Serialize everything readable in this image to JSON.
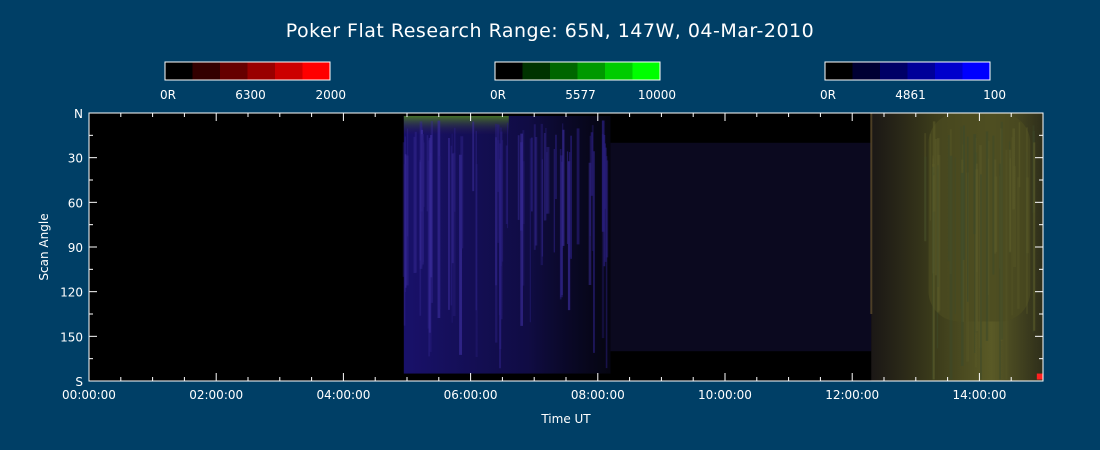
{
  "background": "#003f66",
  "chart_data": {
    "type": "heatmap",
    "title": "Poker Flat Research Range: 65N, 147W, 04-Mar-2010",
    "xlabel": "Time UT",
    "ylabel": "Scan Angle",
    "xlim_hours": [
      0,
      15
    ],
    "x_tick_labels": [
      "00:00:00",
      "02:00:00",
      "04:00:00",
      "06:00:00",
      "08:00:00",
      "10:00:00",
      "12:00:00",
      "14:00:00"
    ],
    "x_tick_values_hours": [
      0,
      2,
      4,
      6,
      8,
      10,
      12,
      14
    ],
    "ylim": [
      0,
      180
    ],
    "y_axis_inverted": true,
    "y_tick_labels": [
      "N",
      "30",
      "60",
      "90",
      "120",
      "150",
      "S"
    ],
    "y_tick_values": [
      0,
      30,
      60,
      90,
      120,
      150,
      180
    ],
    "colorbars": [
      {
        "channel": "red",
        "wavelength_label": "6300",
        "min_label": "0R",
        "max_label": "2000",
        "colors": [
          "#000000",
          "#330000",
          "#660000",
          "#990000",
          "#cc0000",
          "#ff0000"
        ]
      },
      {
        "channel": "green",
        "wavelength_label": "5577",
        "min_label": "0R",
        "max_label": "10000",
        "colors": [
          "#000000",
          "#003300",
          "#006600",
          "#009900",
          "#00cc00",
          "#00ff00"
        ]
      },
      {
        "channel": "blue",
        "wavelength_label": "4861",
        "min_label": "0R",
        "max_label": "100",
        "colors": [
          "#000000",
          "#000033",
          "#000066",
          "#000099",
          "#0000cc",
          "#0000ff"
        ]
      }
    ],
    "data_regions": [
      {
        "name": "no-data",
        "t_start": 0.0,
        "t_end": 4.95,
        "color": "#000000"
      },
      {
        "name": "blue-aurora",
        "t_start": 4.95,
        "t_end": 8.2,
        "angle_start": 2,
        "angle_end": 175,
        "color": "#1a1266"
      },
      {
        "name": "green-arc-edge",
        "t_start": 4.95,
        "t_end": 6.6,
        "angle_start": 2,
        "angle_end": 14,
        "color": "#3a5a1e"
      },
      {
        "name": "faint-blue-tail",
        "t_start": 8.2,
        "t_end": 12.3,
        "angle_start": 20,
        "angle_end": 160,
        "color": "#0c0a22"
      },
      {
        "name": "dawn-twilight",
        "t_start": 12.3,
        "t_end": 15.0,
        "angle_start": 0,
        "angle_end": 180,
        "color": "#2f2f14"
      },
      {
        "name": "bright-morning",
        "t_start": 13.2,
        "t_end": 14.8,
        "angle_start": 0,
        "angle_end": 140,
        "color": "#4b4b20"
      }
    ]
  }
}
